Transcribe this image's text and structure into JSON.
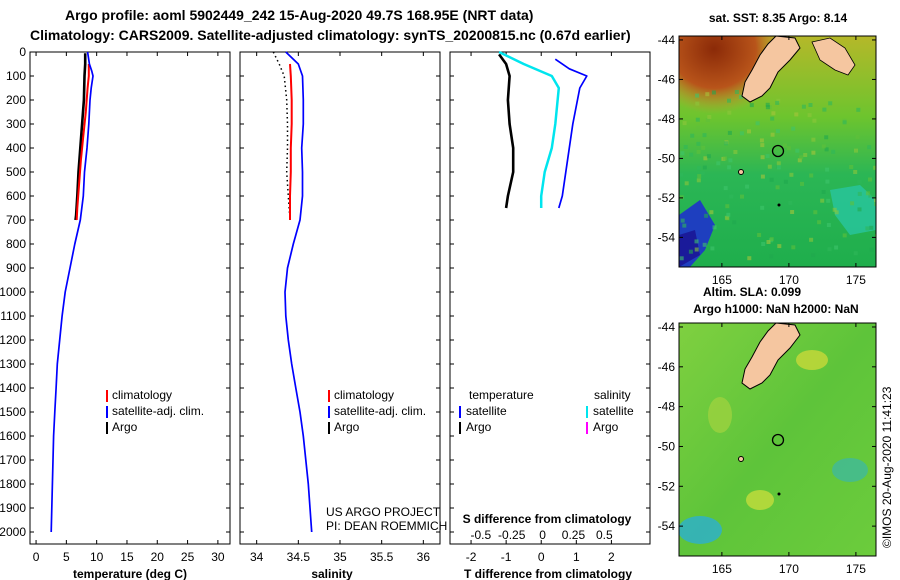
{
  "titles": {
    "line1": "Argo profile: aoml 5902449_242 15-Aug-2020 49.7S 168.95E (NRT data)",
    "line2": "Climatology: CARS2009. Satellite-adjusted climatology: synTS_20200815.nc (0.67d earlier)"
  },
  "legends": {
    "p1": {
      "climatology": "climatology",
      "satellite": "satellite-adj. clim.",
      "argo": "Argo"
    },
    "p2": {
      "climatology": "climatology",
      "satellite": "satellite-adj. clim.",
      "argo": "Argo"
    },
    "p3": {
      "temperature": "temperature",
      "salinity": "salinity",
      "t_satellite": "satellite",
      "t_argo": "Argo",
      "s_satellite": "satellite",
      "s_argo": "Argo"
    }
  },
  "credits": {
    "project": "US ARGO PROJECT",
    "pi": "PI: DEAN ROEMMICH"
  },
  "s_axis_label": "S difference from climatology",
  "s_diff_ticks": [
    "-0.5",
    "-0.25",
    "0",
    "0.25",
    "0.5"
  ],
  "maps": {
    "sst_title": "sat. SST: 8.35 Argo: 8.14",
    "sla_title1": "Altim. SLA: 0.099",
    "sla_title2": "Argo h1000: NaN h2000: NaN",
    "lat_ticks": [
      "-44",
      "-46",
      "-48",
      "-50",
      "-52",
      "-54"
    ],
    "lon_ticks": [
      "165",
      "170",
      "175"
    ],
    "float_position": {
      "lon": 168.95,
      "lat": -49.7
    }
  },
  "watermark": "©IMOS 20-Aug-2020 11:41:23",
  "colors": {
    "argo": "#000000",
    "climatology": "#ff0000",
    "satellite": "#0000ff",
    "salinity_sat": "#00e5ee",
    "salinity_argo": "#ff00ff"
  },
  "chart_data": [
    {
      "type": "line",
      "title": "",
      "xlabel": "temperature (deg C)",
      "ylabel": "",
      "xlim": [
        -1,
        32
      ],
      "ylim": [
        2050,
        0
      ],
      "xticks": [
        0,
        5,
        10,
        15,
        20,
        25,
        30
      ],
      "yticks": [
        0,
        100,
        200,
        300,
        400,
        500,
        600,
        700,
        800,
        900,
        1000,
        1100,
        1200,
        1300,
        1400,
        1500,
        1600,
        1700,
        1800,
        1900,
        2000
      ],
      "series": [
        {
          "name": "Argo",
          "color": "#000000",
          "width": 2.6,
          "points": [
            [
              8.1,
              5
            ],
            [
              8.1,
              50
            ],
            [
              8.0,
              100
            ],
            [
              7.9,
              200
            ],
            [
              7.6,
              300
            ],
            [
              7.3,
              400
            ],
            [
              7.0,
              500
            ],
            [
              6.8,
              600
            ],
            [
              6.6,
              680
            ],
            [
              6.5,
              700
            ]
          ]
        },
        {
          "name": "climatology",
          "color": "#ff0000",
          "width": 2,
          "points": [
            [
              8.7,
              50
            ],
            [
              8.7,
              100
            ],
            [
              8.5,
              150
            ],
            [
              8.2,
              250
            ],
            [
              7.8,
              350
            ],
            [
              7.4,
              450
            ],
            [
              7.1,
              550
            ],
            [
              6.8,
              650
            ],
            [
              6.7,
              700
            ]
          ]
        },
        {
          "name": "satellite-adj. clim.",
          "color": "#0000ff",
          "width": 1.7,
          "points": [
            [
              8.5,
              0
            ],
            [
              8.8,
              50
            ],
            [
              9.2,
              80
            ],
            [
              9.4,
              100
            ],
            [
              9.1,
              150
            ],
            [
              8.9,
              200
            ],
            [
              8.7,
              300
            ],
            [
              8.4,
              400
            ],
            [
              8.0,
              500
            ],
            [
              7.8,
              600
            ],
            [
              7.3,
              700
            ],
            [
              6.4,
              800
            ],
            [
              5.6,
              900
            ],
            [
              4.8,
              1000
            ],
            [
              4.3,
              1100
            ],
            [
              3.9,
              1200
            ],
            [
              3.5,
              1300
            ],
            [
              3.3,
              1400
            ],
            [
              3.1,
              1500
            ],
            [
              2.9,
              1600
            ],
            [
              2.8,
              1700
            ],
            [
              2.7,
              1800
            ],
            [
              2.6,
              1900
            ],
            [
              2.5,
              2000
            ]
          ]
        }
      ]
    },
    {
      "type": "line",
      "title": "",
      "xlabel": "salinity",
      "ylabel": "",
      "xlim": [
        33.8,
        36.2
      ],
      "ylim": [
        2050,
        0
      ],
      "xticks": [
        34,
        34.5,
        35,
        35.5,
        36
      ],
      "series": [
        {
          "name": "Argo",
          "color": "#000000",
          "width": 1.5,
          "dotted": true,
          "points": [
            [
              34.2,
              0
            ],
            [
              34.27,
              50
            ],
            [
              34.33,
              100
            ],
            [
              34.36,
              200
            ],
            [
              34.37,
              300
            ],
            [
              34.37,
              400
            ],
            [
              34.36,
              500
            ],
            [
              34.38,
              600
            ],
            [
              34.4,
              700
            ]
          ]
        },
        {
          "name": "climatology",
          "color": "#ff0000",
          "width": 2,
          "points": [
            [
              34.4,
              50
            ],
            [
              34.41,
              100
            ],
            [
              34.42,
              200
            ],
            [
              34.42,
              300
            ],
            [
              34.41,
              400
            ],
            [
              34.41,
              500
            ],
            [
              34.4,
              600
            ],
            [
              34.4,
              700
            ]
          ]
        },
        {
          "name": "satellite-adj. clim.",
          "color": "#0000ff",
          "width": 1.7,
          "points": [
            [
              34.35,
              0
            ],
            [
              34.5,
              50
            ],
            [
              34.55,
              100
            ],
            [
              34.56,
              200
            ],
            [
              34.56,
              300
            ],
            [
              34.54,
              400
            ],
            [
              34.55,
              500
            ],
            [
              34.55,
              600
            ],
            [
              34.52,
              700
            ],
            [
              34.44,
              800
            ],
            [
              34.37,
              900
            ],
            [
              34.34,
              1000
            ],
            [
              34.35,
              1100
            ],
            [
              34.38,
              1200
            ],
            [
              34.42,
              1300
            ],
            [
              34.47,
              1400
            ],
            [
              34.52,
              1500
            ],
            [
              34.56,
              1600
            ],
            [
              34.59,
              1700
            ],
            [
              34.62,
              1800
            ],
            [
              34.64,
              1900
            ],
            [
              34.66,
              2000
            ]
          ]
        }
      ]
    },
    {
      "type": "line",
      "title": "",
      "xlabel": "T difference from climatology",
      "ylabel": "",
      "xlim": [
        -2.6,
        3.1
      ],
      "ylim": [
        2050,
        0
      ],
      "xticks": [
        -2,
        -1,
        0,
        1,
        2
      ],
      "series": [
        {
          "name": "temperature Argo",
          "color": "#000000",
          "width": 2.6,
          "points": [
            [
              -1.2,
              10
            ],
            [
              -1.0,
              50
            ],
            [
              -0.9,
              100
            ],
            [
              -0.95,
              200
            ],
            [
              -0.9,
              300
            ],
            [
              -0.8,
              400
            ],
            [
              -0.8,
              500
            ],
            [
              -0.95,
              600
            ],
            [
              -1.0,
              650
            ]
          ]
        },
        {
          "name": "temperature satellite",
          "color": "#0000ff",
          "width": 1.7,
          "points": [
            [
              0.4,
              30
            ],
            [
              0.8,
              70
            ],
            [
              1.3,
              100
            ],
            [
              1.1,
              150
            ],
            [
              0.9,
              300
            ],
            [
              0.8,
              400
            ],
            [
              0.7,
              500
            ],
            [
              0.6,
              600
            ],
            [
              0.5,
              650
            ]
          ]
        },
        {
          "name": "salinity satellite",
          "color": "#00e5ee",
          "width": 2.5,
          "points": [
            [
              -1.2,
              0
            ],
            [
              -0.5,
              50
            ],
            [
              0.3,
              100
            ],
            [
              0.5,
              150
            ],
            [
              0.4,
              300
            ],
            [
              0.3,
              400
            ],
            [
              0.1,
              500
            ],
            [
              0.0,
              600
            ],
            [
              0.0,
              650
            ]
          ]
        }
      ]
    }
  ]
}
